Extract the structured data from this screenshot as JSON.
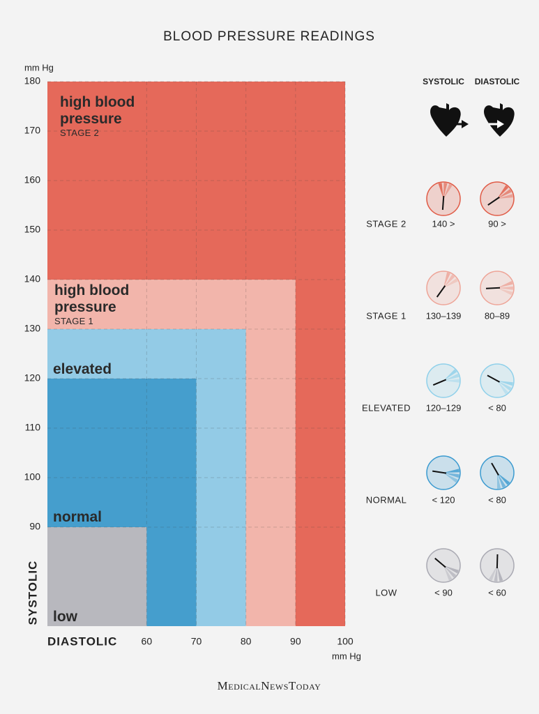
{
  "chart_data": {
    "type": "zones",
    "title": "BLOOD PRESSURE READINGS",
    "y_unit": "mm Hg",
    "x_unit": "mm Hg",
    "y_title": "SYSTOLIC",
    "x_title": "DIASTOLIC",
    "xlim": [
      40,
      100
    ],
    "ylim": [
      70,
      180
    ],
    "xticks": [
      60,
      70,
      80,
      90,
      100
    ],
    "yticks": [
      90,
      100,
      110,
      120,
      130,
      140,
      150,
      160,
      170,
      180
    ],
    "grid": true,
    "zones": [
      {
        "name": "high blood pressure",
        "stage": "STAGE 2",
        "color": "#e5695a",
        "x": 100,
        "y": 180
      },
      {
        "name": "high blood pressure",
        "stage": "STAGE 1",
        "color": "#f2b5ab",
        "x": 90,
        "y": 140
      },
      {
        "name": "elevated",
        "color": "#93cbe6",
        "x": 80,
        "y": 130
      },
      {
        "name": "normal",
        "color": "#459ecd",
        "x": 70,
        "y": 120
      },
      {
        "name": "low",
        "color": "#b8b8be",
        "x": 60,
        "y": 90
      }
    ]
  },
  "legend": {
    "headers": [
      "SYSTOLIC",
      "DIASTOLIC"
    ],
    "rows": [
      {
        "label": "STAGE 2",
        "systolic": "140 >",
        "diastolic": "90 >",
        "color": "#e05a45"
      },
      {
        "label": "STAGE 1",
        "systolic": "130–139",
        "diastolic": "80–89",
        "color": "#eea497"
      },
      {
        "label": "ELEVATED",
        "systolic": "120–129",
        "diastolic": "< 80",
        "color": "#8fd0ea"
      },
      {
        "label": "NORMAL",
        "systolic": "< 120",
        "diastolic": "< 80",
        "color": "#3a9ad0"
      },
      {
        "label": "LOW",
        "systolic": "< 90",
        "diastolic": "< 60",
        "color": "#a9a9b2"
      }
    ]
  },
  "footer": "MedicalNewsToday"
}
